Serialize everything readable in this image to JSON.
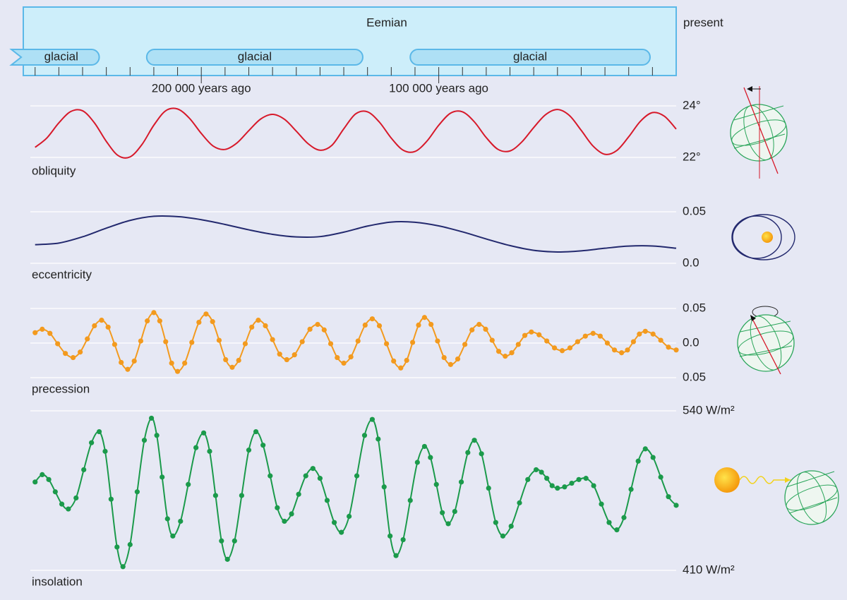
{
  "chart_data": [
    {
      "type": "timeline",
      "title": "Eemian",
      "end_label": "present",
      "xlim": [
        272000,
        0
      ],
      "xticks": [
        {
          "value": 200000,
          "label": "200 000 years ago"
        },
        {
          "value": 100000,
          "label": "100 000 years ago"
        }
      ],
      "minor_xticks": [
        270000,
        260000,
        250000,
        240000,
        230000,
        220000,
        210000,
        190000,
        180000,
        170000,
        160000,
        150000,
        140000,
        130000,
        120000,
        110000,
        90000,
        80000,
        70000,
        60000,
        50000,
        40000,
        30000,
        20000,
        10000
      ],
      "periods": [
        {
          "label": "glacial",
          "start": 280000,
          "end": 243000
        },
        {
          "label": "glacial",
          "start": 223000,
          "end": 132000
        },
        {
          "label": "glacial",
          "start": 112000,
          "end": 11000
        }
      ],
      "color": "#cdeefa",
      "period_color": "#aee0f5",
      "border_color": "#5bb8e8"
    },
    {
      "type": "line",
      "label": "obliquity",
      "color": "#d7192a",
      "xlim": [
        272000,
        0
      ],
      "ylim": [
        22,
        24
      ],
      "grid": true,
      "yticks": [
        {
          "value": 24,
          "label": "24°"
        },
        {
          "value": 22,
          "label": "22°"
        }
      ],
      "x": [
        270000,
        265000,
        260000,
        255000,
        250000,
        245000,
        240000,
        235000,
        230000,
        225000,
        220000,
        215000,
        210000,
        205000,
        200000,
        195000,
        190000,
        185000,
        180000,
        175000,
        170000,
        165000,
        160000,
        155000,
        150000,
        145000,
        140000,
        135000,
        130000,
        125000,
        120000,
        115000,
        110000,
        105000,
        100000,
        95000,
        90000,
        85000,
        80000,
        75000,
        70000,
        65000,
        60000,
        55000,
        50000,
        45000,
        40000,
        35000,
        30000,
        25000,
        20000,
        15000,
        10000,
        5000,
        0
      ],
      "values": [
        22.39,
        22.76,
        23.34,
        23.78,
        23.81,
        23.34,
        22.62,
        22.07,
        22.02,
        22.5,
        23.25,
        23.81,
        23.88,
        23.52,
        22.93,
        22.44,
        22.31,
        22.56,
        23.04,
        23.49,
        23.67,
        23.48,
        23.02,
        22.53,
        22.28,
        22.47,
        23.11,
        23.69,
        23.77,
        23.37,
        22.75,
        22.28,
        22.23,
        22.63,
        23.25,
        23.72,
        23.77,
        23.38,
        22.77,
        22.31,
        22.25,
        22.6,
        23.16,
        23.66,
        23.86,
        23.63,
        23.05,
        22.44,
        22.12,
        22.27,
        22.8,
        23.41,
        23.74,
        23.6,
        23.1
      ]
    },
    {
      "type": "line",
      "label": "eccentricity",
      "color": "#23296e",
      "xlim": [
        272000,
        0
      ],
      "ylim": [
        0,
        0.05
      ],
      "grid": true,
      "yticks": [
        0.05,
        {
          "value": 0,
          "label": "0.0"
        }
      ],
      "x": [
        270000,
        260000,
        250000,
        240000,
        230000,
        220000,
        210000,
        200000,
        190000,
        180000,
        170000,
        160000,
        150000,
        140000,
        130000,
        120000,
        110000,
        100000,
        90000,
        80000,
        70000,
        60000,
        50000,
        40000,
        30000,
        20000,
        10000,
        0
      ],
      "values": [
        0.0181,
        0.0196,
        0.0257,
        0.0341,
        0.0416,
        0.0456,
        0.0453,
        0.0423,
        0.0377,
        0.0325,
        0.0281,
        0.0256,
        0.0259,
        0.0302,
        0.0361,
        0.04,
        0.0398,
        0.0363,
        0.0305,
        0.0236,
        0.0172,
        0.0126,
        0.011,
        0.0121,
        0.0146,
        0.0167,
        0.0168,
        0.0146
      ]
    },
    {
      "type": "line",
      "label": "precession",
      "color": "#f39a1e",
      "markers": true,
      "xlim": [
        272000,
        0
      ],
      "ylim": [
        -0.05,
        0.05
      ],
      "grid": true,
      "yticks": [
        0.05,
        {
          "value": 0,
          "label": "0.0"
        },
        {
          "value": -0.05,
          "label": "0.05"
        }
      ],
      "x": [
        270000,
        267000,
        263750,
        260500,
        257250,
        254000,
        251000,
        248000,
        245000,
        242000,
        239250,
        236500,
        233750,
        231000,
        228250,
        225500,
        222750,
        220000,
        217500,
        215000,
        212500,
        210000,
        207000,
        204000,
        201000,
        198000,
        195250,
        192500,
        189750,
        187000,
        184250,
        181500,
        178750,
        176000,
        173000,
        170000,
        167000,
        164000,
        160750,
        157500,
        154250,
        151000,
        148250,
        145500,
        142750,
        140000,
        137000,
        134000,
        131000,
        128000,
        125000,
        122000,
        119000,
        116000,
        113500,
        111000,
        108500,
        106000,
        103250,
        100500,
        97750,
        95000,
        92000,
        89000,
        86000,
        83000,
        80250,
        77500,
        74750,
        72000,
        69250,
        66500,
        63750,
        61000,
        57750,
        54500,
        51250,
        48000,
        44750,
        41500,
        38250,
        35000,
        32000,
        29000,
        26000,
        23000,
        20500,
        18000,
        15500,
        13000,
        9750,
        6500,
        3250,
        0
      ],
      "values": [
        0.015,
        0.02,
        0.014,
        -0.001,
        -0.015,
        -0.021,
        -0.013,
        0.006,
        0.025,
        0.033,
        0.023,
        -0.002,
        -0.028,
        -0.038,
        -0.026,
        0.003,
        0.032,
        0.044,
        0.032,
        0.002,
        -0.029,
        -0.041,
        -0.029,
        0.001,
        0.03,
        0.042,
        0.031,
        0.004,
        -0.024,
        -0.035,
        -0.025,
        -0.001,
        0.023,
        0.033,
        0.025,
        0.005,
        -0.016,
        -0.024,
        -0.017,
        0.002,
        0.02,
        0.027,
        0.019,
        -0.001,
        -0.021,
        -0.029,
        -0.02,
        0.003,
        0.026,
        0.035,
        0.025,
        -0.001,
        -0.026,
        -0.036,
        -0.025,
        0.001,
        0.026,
        0.037,
        0.027,
        0.003,
        -0.021,
        -0.031,
        -0.023,
        -0.002,
        0.019,
        0.027,
        0.02,
        0.004,
        -0.012,
        -0.019,
        -0.014,
        -0.002,
        0.011,
        0.016,
        0.012,
        0.003,
        -0.007,
        -0.011,
        -0.007,
        0.002,
        0.01,
        0.014,
        0.01,
        0,
        -0.01,
        -0.014,
        -0.01,
        0.002,
        0.013,
        0.017,
        0.013,
        0.004,
        -0.006,
        -0.01
      ]
    },
    {
      "type": "line",
      "label": "insolation",
      "color": "#1b9a4b",
      "markers": true,
      "xlim": [
        272000,
        0
      ],
      "ylim": [
        410,
        540
      ],
      "grid": true,
      "yticks": [
        {
          "value": 540,
          "label": "540 W/m²"
        },
        {
          "value": 410,
          "label": "410 W/m²"
        }
      ],
      "x": [
        270000,
        267000,
        264250,
        261500,
        258750,
        256000,
        252750,
        249500,
        246250,
        243000,
        240500,
        238000,
        235500,
        233000,
        230000,
        227000,
        224000,
        221000,
        218750,
        216500,
        214250,
        212000,
        208750,
        205500,
        202250,
        199000,
        196500,
        194000,
        191500,
        189000,
        186000,
        183000,
        180000,
        177000,
        174000,
        171000,
        168000,
        165000,
        162000,
        159000,
        156000,
        153000,
        150000,
        147000,
        144000,
        141000,
        137750,
        134500,
        131250,
        128000,
        125500,
        123000,
        120500,
        118000,
        115000,
        112000,
        109000,
        106000,
        103500,
        101000,
        98500,
        96000,
        93250,
        90500,
        87750,
        85000,
        82000,
        79000,
        76000,
        73000,
        69500,
        66000,
        62500,
        59000,
        56750,
        54500,
        52250,
        50000,
        47000,
        44000,
        41000,
        38000,
        34750,
        31500,
        28250,
        25000,
        22000,
        19000,
        16000,
        13000,
        9750,
        6500,
        3250,
        0
      ],
      "values": [
        482,
        488,
        484,
        474,
        464,
        460,
        469,
        492,
        514,
        523,
        507,
        468,
        429,
        413,
        431,
        474,
        516,
        534,
        520,
        486,
        452,
        438,
        450,
        480,
        510,
        522,
        507,
        471,
        434,
        419,
        434,
        471,
        508,
        523,
        512,
        487,
        461,
        450,
        456,
        472,
        487,
        493,
        485,
        467,
        449,
        441,
        454,
        487,
        520,
        533,
        517,
        478,
        438,
        422,
        435,
        467,
        498,
        511,
        502,
        480,
        457,
        448,
        458,
        482,
        506,
        516,
        505,
        477,
        449,
        438,
        446,
        465,
        484,
        492,
        490,
        485,
        479,
        477,
        478,
        481,
        484,
        485,
        479,
        464,
        449,
        443,
        453,
        476,
        499,
        509,
        502,
        486,
        470,
        463
      ]
    }
  ]
}
